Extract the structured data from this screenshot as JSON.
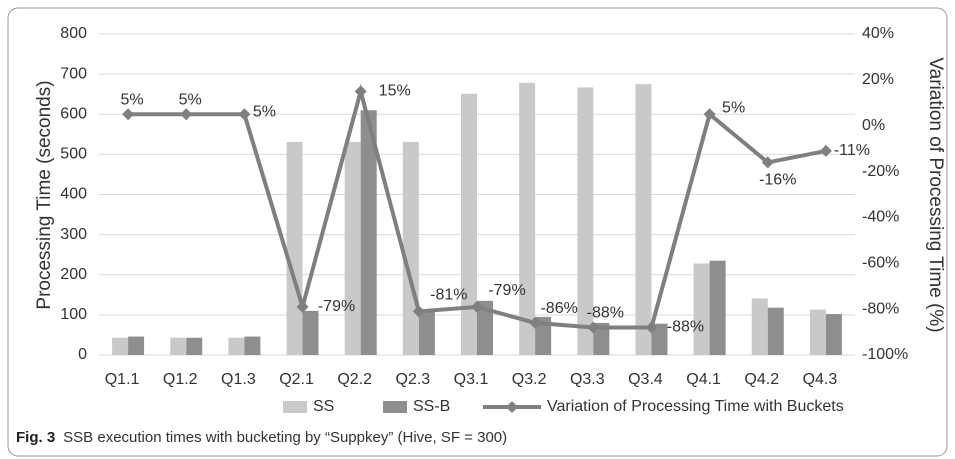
{
  "chart_data": {
    "type": "bar",
    "y_label": "Processing Time (seconds)",
    "y2_label": "Variation of Processing Time (%)",
    "categories": [
      "Q1.1",
      "Q1.2",
      "Q1.3",
      "Q2.1",
      "Q2.2",
      "Q2.3",
      "Q3.1",
      "Q3.2",
      "Q3.3",
      "Q3.4",
      "Q4.1",
      "Q4.2",
      "Q4.3"
    ],
    "series": [
      {
        "name": "SS",
        "type": "bar",
        "color": "#c9c9c9",
        "values": [
          43,
          43,
          43,
          531,
          531,
          531,
          651,
          678,
          667,
          675,
          228,
          141,
          113
        ]
      },
      {
        "name": "SS-B",
        "type": "bar",
        "color": "#8e8e8e",
        "values": [
          46,
          43,
          46,
          110,
          610,
          110,
          135,
          95,
          80,
          78,
          235,
          118,
          102
        ]
      },
      {
        "name": "Variation of Processing Time with Buckets",
        "type": "line",
        "axis": "y2",
        "color": "#7f7f7f",
        "values": [
          5,
          5,
          5,
          -79,
          15,
          -81,
          -79,
          -86,
          -88,
          -88,
          5,
          -16,
          -11
        ],
        "value_labels": [
          "5%",
          "5%",
          "5%",
          "-79%",
          "15%",
          "-81%",
          "-79%",
          "-86%",
          "-88%",
          "-88%",
          "5%",
          "-16%",
          "-11%"
        ]
      }
    ],
    "ylim": [
      0,
      800
    ],
    "yticks": [
      0,
      100,
      200,
      300,
      400,
      500,
      600,
      700,
      800
    ],
    "y2lim": [
      -100,
      40
    ],
    "y2ticks": [
      {
        "value": -100,
        "label": "-100%"
      },
      {
        "value": -80,
        "label": "-80%"
      },
      {
        "value": -60,
        "label": "-60%"
      },
      {
        "value": -40,
        "label": "-40%"
      },
      {
        "value": -20,
        "label": "-20%"
      },
      {
        "value": 0,
        "label": "0%"
      },
      {
        "value": 20,
        "label": "20%"
      },
      {
        "value": 40,
        "label": "40%"
      }
    ],
    "grid": true,
    "legend": "bottom",
    "caption": {
      "label": "Fig. 3",
      "text": "SSB execution times with bucketing by “Suppkey” (Hive, SF = 300)"
    }
  }
}
